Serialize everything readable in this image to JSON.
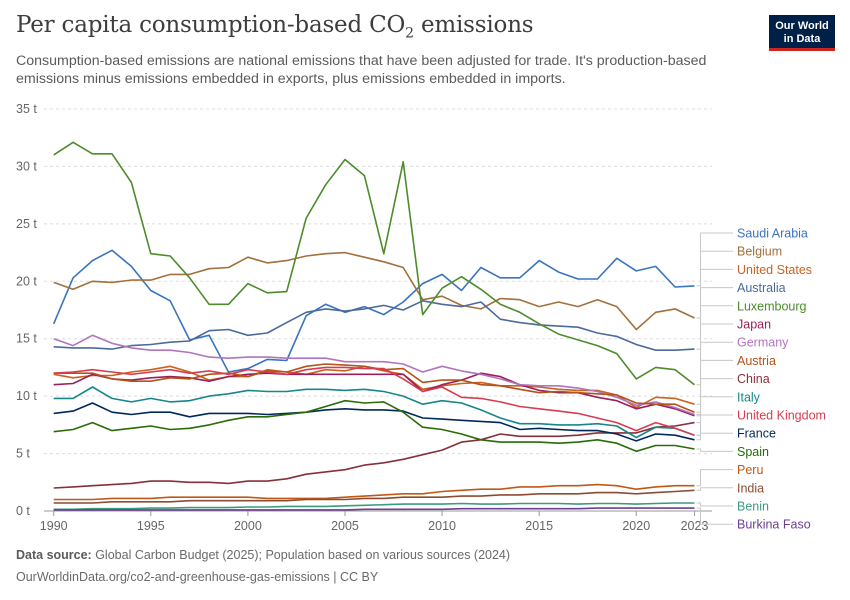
{
  "header": {
    "title_main": "Per capita consumption-based CO",
    "title_sub": "2",
    "title_end": " emissions",
    "subtitle": "Consumption-based emissions are national emissions that have been adjusted for trade. It's production-based emissions minus emissions embedded in exports, plus emissions embedded in imports.",
    "logo_line1": "Our World",
    "logo_line2": "in Data"
  },
  "footer": {
    "source_label": "Data source:",
    "source_text": " Global Carbon Budget (2025); Population based on various sources (2024)",
    "url_text": "OurWorldinData.org/co2-and-greenhouse-gas-emissions | CC BY"
  },
  "chart_data": {
    "type": "line",
    "title": "Per capita consumption-based CO₂ emissions",
    "xlabel": "",
    "ylabel": "",
    "x": [
      1990,
      1991,
      1992,
      1993,
      1994,
      1995,
      1996,
      1997,
      1998,
      1999,
      2000,
      2001,
      2002,
      2003,
      2004,
      2005,
      2006,
      2007,
      2008,
      2009,
      2010,
      2011,
      2012,
      2013,
      2014,
      2015,
      2016,
      2017,
      2018,
      2019,
      2020,
      2021,
      2022,
      2023
    ],
    "xlim": [
      1989.5,
      2023.9
    ],
    "ylim": [
      0,
      35
    ],
    "y_ticks": [
      0,
      5,
      10,
      15,
      20,
      25,
      30,
      35
    ],
    "y_tick_labels": [
      "0 t",
      "5 t",
      "10 t",
      "15 t",
      "20 t",
      "25 t",
      "30 t",
      "35 t"
    ],
    "x_ticks": [
      1990,
      1995,
      2000,
      2005,
      2010,
      2015,
      2020,
      2023
    ],
    "x_tick_labels": [
      "1990",
      "1995",
      "2000",
      "2005",
      "2010",
      "2015",
      "2020",
      "2023"
    ],
    "grid": "horizontal dashed",
    "series": [
      {
        "name": "Saudi Arabia",
        "color": "#3a73c0",
        "values": [
          16.3,
          20.3,
          21.8,
          22.7,
          21.3,
          19.2,
          18.3,
          14.9,
          15.3,
          12.1,
          12.4,
          13.2,
          13.1,
          17.0,
          18.0,
          17.3,
          17.8,
          17.1,
          18.2,
          19.8,
          20.6,
          19.2,
          21.2,
          20.3,
          20.3,
          21.8,
          20.8,
          20.2,
          20.2,
          22.0,
          20.9,
          21.3,
          19.5,
          19.6
        ]
      },
      {
        "name": "Belgium",
        "color": "#a2703c",
        "values": [
          19.9,
          19.3,
          20.0,
          19.9,
          20.1,
          20.1,
          20.6,
          20.6,
          21.1,
          21.2,
          22.1,
          21.6,
          21.8,
          22.2,
          22.4,
          22.5,
          22.1,
          21.7,
          21.2,
          18.4,
          18.7,
          17.9,
          17.6,
          18.5,
          18.4,
          17.8,
          18.2,
          17.8,
          18.4,
          17.8,
          15.8,
          17.3,
          17.6,
          16.8
        ]
      },
      {
        "name": "United States",
        "color": "#c9631e",
        "values": [
          11.9,
          11.6,
          11.8,
          11.8,
          12.1,
          12.3,
          12.6,
          12.1,
          11.4,
          11.7,
          11.7,
          12.3,
          12.1,
          11.9,
          12.3,
          12.2,
          12.6,
          12.2,
          11.9,
          10.6,
          10.9,
          11.1,
          11.2,
          10.9,
          10.9,
          10.8,
          10.6,
          10.5,
          10.5,
          10.1,
          9.0,
          9.9,
          9.8,
          9.3
        ]
      },
      {
        "name": "Australia",
        "color": "#4c6a9c",
        "values": [
          14.3,
          14.2,
          14.2,
          14.1,
          14.4,
          14.5,
          14.7,
          14.8,
          15.7,
          15.8,
          15.3,
          15.5,
          16.4,
          17.3,
          17.6,
          17.4,
          17.6,
          17.9,
          17.5,
          18.3,
          18.0,
          17.8,
          18.2,
          16.7,
          16.4,
          16.2,
          16.1,
          16.0,
          15.5,
          15.2,
          14.5,
          14.0,
          14.0,
          14.1
        ]
      },
      {
        "name": "Luxembourg",
        "color": "#4c8c2b",
        "values": [
          31.0,
          32.1,
          31.1,
          31.1,
          28.6,
          22.4,
          22.2,
          20.3,
          18.0,
          18.0,
          19.8,
          19.0,
          19.1,
          25.5,
          28.4,
          30.6,
          29.2,
          22.4,
          30.4,
          17.1,
          19.4,
          20.4,
          19.3,
          18.0,
          17.3,
          16.3,
          15.4,
          14.9,
          14.4,
          13.7,
          11.5,
          12.5,
          12.3,
          11.0
        ]
      },
      {
        "name": "Japan",
        "color": "#9a1f5a",
        "values": [
          11.0,
          11.1,
          11.9,
          11.5,
          11.4,
          11.6,
          11.7,
          11.6,
          11.3,
          11.7,
          11.9,
          12.0,
          11.9,
          11.9,
          11.9,
          11.9,
          11.9,
          11.9,
          11.9,
          10.4,
          11.0,
          11.4,
          12.0,
          11.7,
          11.0,
          10.5,
          10.3,
          10.3,
          9.9,
          9.6,
          8.9,
          9.3,
          8.9,
          8.3
        ]
      },
      {
        "name": "Germany",
        "color": "#b174be",
        "values": [
          15.0,
          14.4,
          15.3,
          14.6,
          14.2,
          14.0,
          14.0,
          13.8,
          13.4,
          13.3,
          13.4,
          13.4,
          13.3,
          13.3,
          13.3,
          13.0,
          13.0,
          13.0,
          12.8,
          12.1,
          12.6,
          12.2,
          11.9,
          11.5,
          11.0,
          10.9,
          10.9,
          10.7,
          10.4,
          9.9,
          9.2,
          9.5,
          9.0,
          8.4
        ]
      },
      {
        "name": "Austria",
        "color": "#b35219",
        "values": [
          12.0,
          12.0,
          12.0,
          11.5,
          11.3,
          11.3,
          11.6,
          11.5,
          11.9,
          12.0,
          11.7,
          12.2,
          12.1,
          12.6,
          12.8,
          12.7,
          12.6,
          12.3,
          12.4,
          11.2,
          11.4,
          11.4,
          11.0,
          10.9,
          10.6,
          10.3,
          10.4,
          10.3,
          10.2,
          10.1,
          9.4,
          9.3,
          9.3,
          8.6
        ]
      },
      {
        "name": "China",
        "color": "#883039",
        "values": [
          2.0,
          2.1,
          2.2,
          2.3,
          2.4,
          2.6,
          2.6,
          2.5,
          2.5,
          2.4,
          2.6,
          2.6,
          2.8,
          3.2,
          3.4,
          3.6,
          4.0,
          4.2,
          4.5,
          4.9,
          5.3,
          6.0,
          6.2,
          6.7,
          6.5,
          6.5,
          6.5,
          6.6,
          6.8,
          6.8,
          6.8,
          7.3,
          7.4,
          7.7
        ]
      },
      {
        "name": "Italy",
        "color": "#16878a",
        "values": [
          9.8,
          9.8,
          10.8,
          9.8,
          9.5,
          9.8,
          9.5,
          9.6,
          10.0,
          10.2,
          10.5,
          10.4,
          10.4,
          10.6,
          10.6,
          10.5,
          10.6,
          10.4,
          10.0,
          9.3,
          9.6,
          9.4,
          8.8,
          8.1,
          7.6,
          7.6,
          7.5,
          7.5,
          7.6,
          7.4,
          6.4,
          7.3,
          7.2,
          6.6
        ]
      },
      {
        "name": "United Kingdom",
        "color": "#d73c50",
        "values": [
          12.0,
          12.1,
          12.3,
          12.1,
          11.9,
          12.1,
          12.3,
          12.0,
          12.2,
          11.9,
          12.3,
          12.1,
          11.9,
          12.3,
          12.5,
          12.5,
          12.4,
          12.4,
          11.5,
          10.4,
          10.8,
          9.9,
          9.8,
          9.5,
          9.1,
          8.9,
          8.7,
          8.5,
          8.1,
          7.7,
          7.0,
          7.7,
          7.2,
          6.6
        ]
      },
      {
        "name": "France",
        "color": "#00295b",
        "values": [
          8.5,
          8.7,
          9.4,
          8.6,
          8.4,
          8.6,
          8.6,
          8.2,
          8.5,
          8.5,
          8.5,
          8.4,
          8.5,
          8.6,
          8.8,
          8.9,
          8.8,
          8.8,
          8.7,
          8.1,
          8.0,
          7.9,
          7.8,
          7.7,
          7.1,
          7.2,
          7.1,
          7.0,
          7.0,
          6.7,
          6.1,
          6.7,
          6.6,
          6.2
        ]
      },
      {
        "name": "Spain",
        "color": "#286b07",
        "values": [
          6.9,
          7.1,
          7.7,
          7.0,
          7.2,
          7.4,
          7.1,
          7.2,
          7.5,
          7.9,
          8.2,
          8.2,
          8.4,
          8.6,
          9.1,
          9.6,
          9.4,
          9.5,
          8.6,
          7.3,
          7.1,
          6.7,
          6.2,
          6.0,
          6.0,
          6.0,
          5.9,
          6.0,
          6.2,
          5.9,
          5.2,
          5.7,
          5.7,
          5.4
        ]
      },
      {
        "name": "Peru",
        "color": "#c05917",
        "values": [
          1.0,
          1.0,
          1.0,
          1.1,
          1.1,
          1.1,
          1.2,
          1.2,
          1.2,
          1.2,
          1.2,
          1.1,
          1.1,
          1.1,
          1.1,
          1.2,
          1.3,
          1.4,
          1.5,
          1.5,
          1.7,
          1.8,
          1.9,
          1.9,
          2.1,
          2.1,
          2.2,
          2.2,
          2.3,
          2.2,
          1.9,
          2.1,
          2.2,
          2.2
        ]
      },
      {
        "name": "India",
        "color": "#8c4c33",
        "values": [
          0.7,
          0.7,
          0.7,
          0.8,
          0.8,
          0.8,
          0.8,
          0.9,
          0.9,
          0.9,
          0.9,
          0.9,
          0.9,
          1.0,
          1.0,
          1.0,
          1.1,
          1.1,
          1.2,
          1.2,
          1.2,
          1.3,
          1.3,
          1.4,
          1.4,
          1.5,
          1.5,
          1.5,
          1.6,
          1.6,
          1.5,
          1.6,
          1.7,
          1.8
        ]
      },
      {
        "name": "Benin",
        "color": "#3c9a7e",
        "values": [
          0.15,
          0.15,
          0.2,
          0.2,
          0.2,
          0.25,
          0.25,
          0.3,
          0.3,
          0.3,
          0.35,
          0.35,
          0.4,
          0.4,
          0.4,
          0.45,
          0.5,
          0.55,
          0.6,
          0.6,
          0.6,
          0.65,
          0.6,
          0.6,
          0.65,
          0.65,
          0.65,
          0.6,
          0.65,
          0.65,
          0.6,
          0.65,
          0.7,
          0.7
        ]
      },
      {
        "name": "Burkina Faso",
        "color": "#6d3e91",
        "values": [
          0.1,
          0.1,
          0.1,
          0.1,
          0.1,
          0.1,
          0.1,
          0.1,
          0.1,
          0.1,
          0.1,
          0.1,
          0.1,
          0.1,
          0.1,
          0.1,
          0.15,
          0.15,
          0.15,
          0.15,
          0.15,
          0.2,
          0.2,
          0.2,
          0.2,
          0.2,
          0.2,
          0.2,
          0.25,
          0.25,
          0.25,
          0.25,
          0.25,
          0.25
        ]
      }
    ]
  }
}
